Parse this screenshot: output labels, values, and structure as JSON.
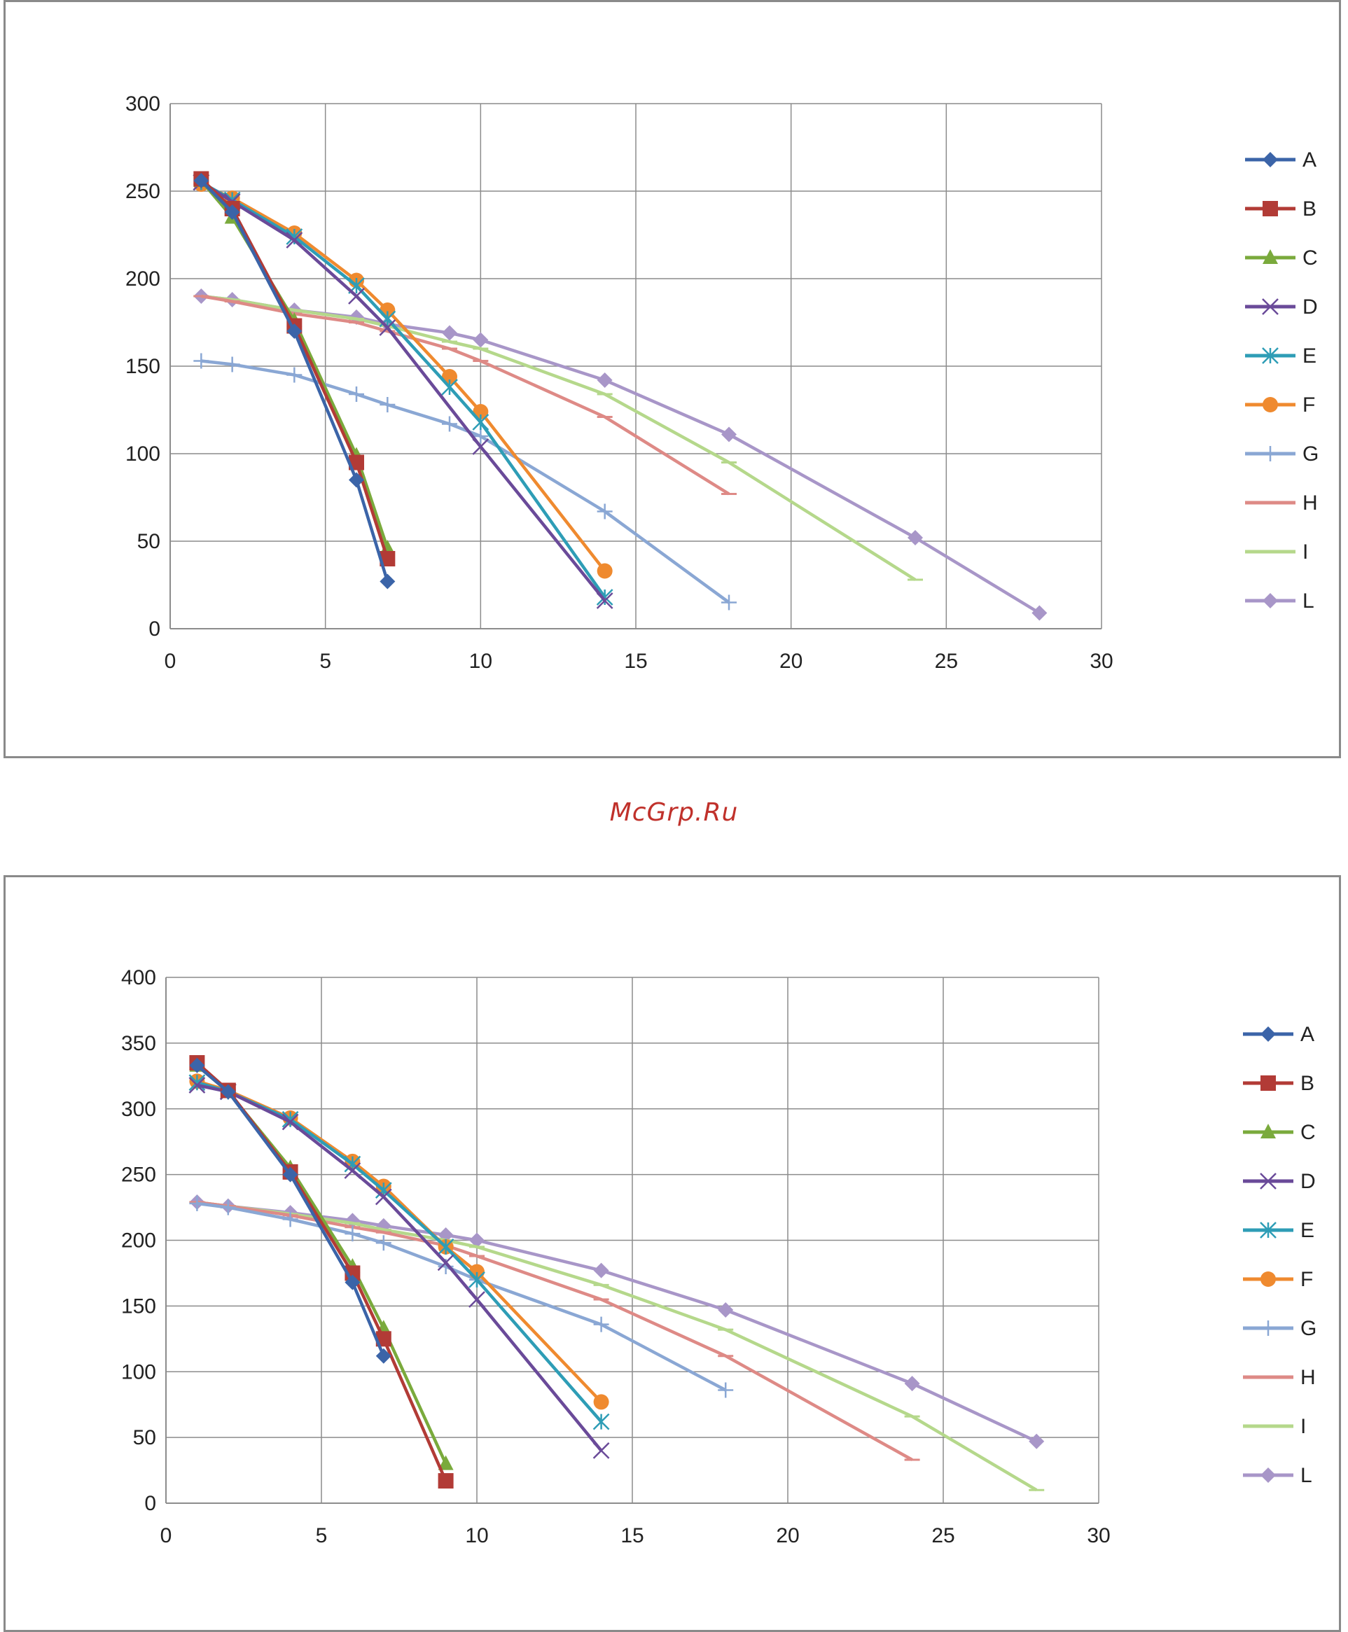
{
  "watermark": "McGrp.Ru",
  "colors": {
    "A": "#3b64a8",
    "B": "#b23b36",
    "C": "#7aaa3c",
    "D": "#6a4a99",
    "E": "#2e9db6",
    "F": "#ef8a2f",
    "G": "#8aa7d4",
    "H": "#de8a86",
    "I": "#b5d88b",
    "L": "#a896c8"
  },
  "chart_data": [
    {
      "type": "line",
      "xlim": [
        0,
        30
      ],
      "ylim": [
        0,
        300
      ],
      "xticks": [
        0,
        5,
        10,
        15,
        20,
        25,
        30
      ],
      "yticks": [
        0,
        50,
        100,
        150,
        200,
        250,
        300
      ],
      "grid": true,
      "legend": "right",
      "series": [
        {
          "name": "A",
          "marker": "diamond",
          "points": [
            [
              1,
              256
            ],
            [
              2,
              238
            ],
            [
              4,
              170
            ],
            [
              6,
              85
            ],
            [
              7,
              27
            ]
          ]
        },
        {
          "name": "B",
          "marker": "square",
          "points": [
            [
              1,
              257
            ],
            [
              2,
              240
            ],
            [
              4,
              173
            ],
            [
              6,
              95
            ],
            [
              7,
              40
            ]
          ]
        },
        {
          "name": "C",
          "marker": "triangle",
          "points": [
            [
              1,
              256
            ],
            [
              2,
              235
            ],
            [
              4,
              176
            ],
            [
              6,
              99
            ],
            [
              7,
              46
            ]
          ]
        },
        {
          "name": "D",
          "marker": "x",
          "points": [
            [
              1,
              255
            ],
            [
              2,
              244
            ],
            [
              4,
              222
            ],
            [
              6,
              190
            ],
            [
              7,
              172
            ],
            [
              10,
              104
            ],
            [
              14,
              16
            ]
          ]
        },
        {
          "name": "E",
          "marker": "star",
          "points": [
            [
              1,
              255
            ],
            [
              2,
              245
            ],
            [
              4,
              224
            ],
            [
              6,
              196
            ],
            [
              7,
              177
            ],
            [
              9,
              138
            ],
            [
              10,
              118
            ],
            [
              14,
              18
            ]
          ]
        },
        {
          "name": "F",
          "marker": "circle",
          "points": [
            [
              1,
              254
            ],
            [
              2,
              246
            ],
            [
              4,
              226
            ],
            [
              6,
              199
            ],
            [
              7,
              182
            ],
            [
              9,
              144
            ],
            [
              10,
              124
            ],
            [
              14,
              33
            ]
          ]
        },
        {
          "name": "G",
          "marker": "plus",
          "points": [
            [
              1,
              153
            ],
            [
              2,
              151
            ],
            [
              4,
              145
            ],
            [
              6,
              134
            ],
            [
              7,
              128
            ],
            [
              9,
              117
            ],
            [
              10,
              110
            ],
            [
              14,
              67
            ],
            [
              18,
              15
            ]
          ]
        },
        {
          "name": "H",
          "marker": "dash",
          "points": [
            [
              1,
              190
            ],
            [
              2,
              187
            ],
            [
              4,
              180
            ],
            [
              6,
              175
            ],
            [
              7,
              170
            ],
            [
              9,
              160
            ],
            [
              10,
              153
            ],
            [
              14,
              121
            ],
            [
              18,
              77
            ]
          ]
        },
        {
          "name": "I",
          "marker": "dash",
          "points": [
            [
              1,
              190
            ],
            [
              2,
              188
            ],
            [
              4,
              182
            ],
            [
              6,
              177
            ],
            [
              7,
              173
            ],
            [
              9,
              164
            ],
            [
              10,
              160
            ],
            [
              14,
              134
            ],
            [
              18,
              95
            ],
            [
              24,
              28
            ]
          ]
        },
        {
          "name": "L",
          "marker": "diamond",
          "points": [
            [
              1,
              190
            ],
            [
              2,
              188
            ],
            [
              4,
              182
            ],
            [
              6,
              178
            ],
            [
              7,
              174
            ],
            [
              9,
              169
            ],
            [
              10,
              165
            ],
            [
              14,
              142
            ],
            [
              18,
              111
            ],
            [
              24,
              52
            ],
            [
              28,
              9
            ]
          ]
        }
      ]
    },
    {
      "type": "line",
      "xlim": [
        0,
        30
      ],
      "ylim": [
        0,
        400
      ],
      "xticks": [
        0,
        5,
        10,
        15,
        20,
        25,
        30
      ],
      "yticks": [
        0,
        50,
        100,
        150,
        200,
        250,
        300,
        350,
        400
      ],
      "grid": true,
      "legend": "right",
      "series": [
        {
          "name": "A",
          "marker": "diamond",
          "points": [
            [
              1,
              333
            ],
            [
              2,
              313
            ],
            [
              4,
              250
            ],
            [
              6,
              168
            ],
            [
              7,
              112
            ]
          ]
        },
        {
          "name": "B",
          "marker": "square",
          "points": [
            [
              1,
              335
            ],
            [
              2,
              314
            ],
            [
              4,
              252
            ],
            [
              6,
              175
            ],
            [
              7,
              125
            ],
            [
              9,
              17
            ]
          ]
        },
        {
          "name": "C",
          "marker": "triangle",
          "points": [
            [
              1,
              333
            ],
            [
              2,
              313
            ],
            [
              4,
              255
            ],
            [
              6,
              180
            ],
            [
              7,
              133
            ],
            [
              9,
              30
            ]
          ]
        },
        {
          "name": "D",
          "marker": "x",
          "points": [
            [
              1,
              318
            ],
            [
              2,
              313
            ],
            [
              4,
              290
            ],
            [
              6,
              253
            ],
            [
              7,
              233
            ],
            [
              9,
              183
            ],
            [
              10,
              155
            ],
            [
              14,
              40
            ]
          ]
        },
        {
          "name": "E",
          "marker": "star",
          "points": [
            [
              1,
              320
            ],
            [
              2,
              313
            ],
            [
              4,
              292
            ],
            [
              6,
              258
            ],
            [
              7,
              238
            ],
            [
              9,
              195
            ],
            [
              10,
              170
            ],
            [
              14,
              62
            ]
          ]
        },
        {
          "name": "F",
          "marker": "circle",
          "points": [
            [
              1,
              321
            ],
            [
              2,
              314
            ],
            [
              4,
              293
            ],
            [
              6,
              260
            ],
            [
              7,
              241
            ],
            [
              9,
              195
            ],
            [
              10,
              176
            ],
            [
              14,
              77
            ]
          ]
        },
        {
          "name": "G",
          "marker": "plus",
          "points": [
            [
              1,
              228
            ],
            [
              2,
              225
            ],
            [
              4,
              216
            ],
            [
              6,
              205
            ],
            [
              7,
              198
            ],
            [
              9,
              180
            ],
            [
              10,
              170
            ],
            [
              14,
              136
            ],
            [
              18,
              86
            ]
          ]
        },
        {
          "name": "H",
          "marker": "dash",
          "points": [
            [
              1,
              229
            ],
            [
              2,
              226
            ],
            [
              4,
              219
            ],
            [
              6,
              210
            ],
            [
              7,
              206
            ],
            [
              9,
              196
            ],
            [
              10,
              188
            ],
            [
              14,
              155
            ],
            [
              18,
              112
            ],
            [
              24,
              33
            ]
          ]
        },
        {
          "name": "I",
          "marker": "dash",
          "points": [
            [
              1,
              229
            ],
            [
              2,
              226
            ],
            [
              4,
              220
            ],
            [
              6,
              213
            ],
            [
              7,
              208
            ],
            [
              9,
              200
            ],
            [
              10,
              195
            ],
            [
              14,
              166
            ],
            [
              18,
              132
            ],
            [
              24,
              66
            ],
            [
              28,
              10
            ]
          ]
        },
        {
          "name": "L",
          "marker": "diamond",
          "points": [
            [
              1,
              229
            ],
            [
              2,
              226
            ],
            [
              4,
              221
            ],
            [
              6,
              215
            ],
            [
              7,
              211
            ],
            [
              9,
              204
            ],
            [
              10,
              200
            ],
            [
              14,
              177
            ],
            [
              18,
              147
            ],
            [
              24,
              91
            ],
            [
              28,
              47
            ]
          ]
        }
      ]
    }
  ]
}
